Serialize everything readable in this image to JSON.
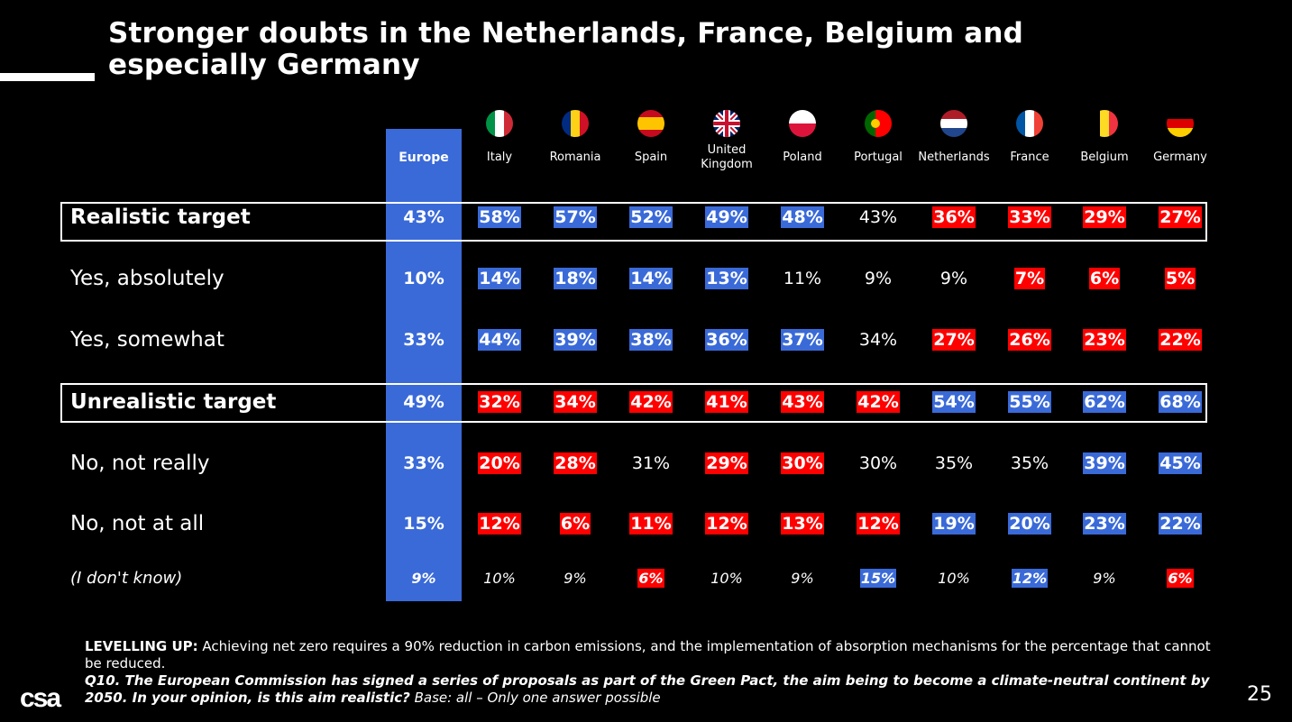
{
  "title": "Stronger doubts in the Netherlands, France, Belgium and especially Germany",
  "europe_label": "Europe",
  "countries": [
    {
      "name": "Italy",
      "flag": "italy"
    },
    {
      "name": "Romania",
      "flag": "romania"
    },
    {
      "name": "Spain",
      "flag": "spain"
    },
    {
      "name": "United Kingdom",
      "flag": "uk"
    },
    {
      "name": "Poland",
      "flag": "poland"
    },
    {
      "name": "Portugal",
      "flag": "portugal"
    },
    {
      "name": "Netherlands",
      "flag": "netherlands"
    },
    {
      "name": "France",
      "flag": "france"
    },
    {
      "name": "Belgium",
      "flag": "belgium"
    },
    {
      "name": "Germany",
      "flag": "germany"
    }
  ],
  "colors": {
    "blue": "#3a6ad8",
    "red": "#ff0000"
  },
  "rows": [
    {
      "label": "Realistic target",
      "style": "boxed",
      "europe": "43%",
      "values": [
        "58%",
        "57%",
        "52%",
        "49%",
        "48%",
        "43%",
        "36%",
        "33%",
        "29%",
        "27%"
      ],
      "highlight": [
        "blue",
        "blue",
        "blue",
        "blue",
        "blue",
        "none",
        "red",
        "red",
        "red",
        "red"
      ]
    },
    {
      "label": "Yes, absolutely",
      "style": "normal",
      "europe": "10%",
      "values": [
        "14%",
        "18%",
        "14%",
        "13%",
        "11%",
        "9%",
        "9%",
        "7%",
        "6%",
        "5%"
      ],
      "highlight": [
        "blue",
        "blue",
        "blue",
        "blue",
        "none",
        "none",
        "none",
        "red",
        "red",
        "red"
      ]
    },
    {
      "label": "Yes, somewhat",
      "style": "normal",
      "europe": "33%",
      "values": [
        "44%",
        "39%",
        "38%",
        "36%",
        "37%",
        "34%",
        "27%",
        "26%",
        "23%",
        "22%"
      ],
      "highlight": [
        "blue",
        "blue",
        "blue",
        "blue",
        "blue",
        "none",
        "red",
        "red",
        "red",
        "red"
      ]
    },
    {
      "label": "Unrealistic target",
      "style": "boxed",
      "europe": "49%",
      "values": [
        "32%",
        "34%",
        "42%",
        "41%",
        "43%",
        "42%",
        "54%",
        "55%",
        "62%",
        "68%"
      ],
      "highlight": [
        "red",
        "red",
        "red",
        "red",
        "red",
        "red",
        "blue",
        "blue",
        "blue",
        "blue"
      ]
    },
    {
      "label": "No, not really",
      "style": "normal",
      "europe": "33%",
      "values": [
        "20%",
        "28%",
        "31%",
        "29%",
        "30%",
        "30%",
        "35%",
        "35%",
        "39%",
        "45%"
      ],
      "highlight": [
        "red",
        "red",
        "none",
        "red",
        "red",
        "none",
        "none",
        "none",
        "blue",
        "blue"
      ]
    },
    {
      "label": "No, not at all",
      "style": "normal",
      "europe": "15%",
      "values": [
        "12%",
        "6%",
        "11%",
        "12%",
        "13%",
        "12%",
        "19%",
        "20%",
        "23%",
        "22%"
      ],
      "highlight": [
        "red",
        "red",
        "red",
        "red",
        "red",
        "red",
        "blue",
        "blue",
        "blue",
        "blue"
      ]
    },
    {
      "label": "(I don't know)",
      "style": "italic",
      "europe": "9%",
      "values": [
        "10%",
        "9%",
        "6%",
        "10%",
        "9%",
        "15%",
        "10%",
        "12%",
        "9%",
        "6%"
      ],
      "highlight": [
        "none",
        "none",
        "red",
        "none",
        "none",
        "blue",
        "none",
        "blue",
        "none",
        "red"
      ]
    }
  ],
  "footer": {
    "levelling_label": "LEVELLING UP:",
    "levelling_text": " Achieving net zero requires a 90% reduction in carbon emissions, and the implementation of absorption mechanisms for the percentage that cannot be reduced.",
    "q_label": "Q10.",
    "q_text": " The European Commission has signed a series of proposals as part of the Green Pact, the aim being to become a climate-neutral continent by 2050. In your opinion, is this aim realistic?",
    "base_text": " Base: all – Only one answer possible"
  },
  "logo": "csa",
  "page_number": "25"
}
